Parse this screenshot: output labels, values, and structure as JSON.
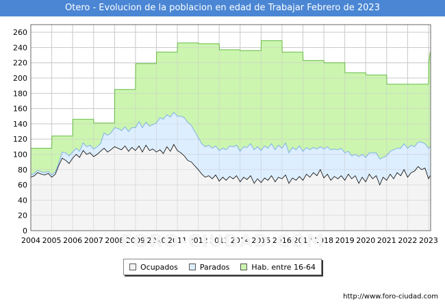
{
  "title": "Otero - Evolucion de la poblacion en edad de Trabajar Febrero de 2023",
  "source": "http://www.foro-ciudad.com",
  "watermark": "FORO-CIUDAD.COM",
  "colors": {
    "title_bg": "#4a86d4",
    "hab": "#ccf5b0",
    "hab_line": "#66bb44",
    "parados": "#ddeeff",
    "parados_line": "#7fb2e5",
    "ocupados": "#f4f4f4",
    "ocupados_line": "#000000"
  },
  "chart_data": {
    "type": "area",
    "title": "Otero - Evolucion de la poblacion en edad de Trabajar Febrero de 2023",
    "xlabel": "",
    "ylabel": "",
    "xlim": [
      2004,
      2023.1
    ],
    "ylim": [
      0,
      270
    ],
    "x_ticks": [
      "2004",
      "2005",
      "2006",
      "2007",
      "2008",
      "2009",
      "2010",
      "2011",
      "2012",
      "2013",
      "2014",
      "2015",
      "2016",
      "2017",
      "2018",
      "2019",
      "2020",
      "2021",
      "2022",
      "2023"
    ],
    "y_ticks": [
      0,
      20,
      40,
      60,
      80,
      100,
      120,
      140,
      160,
      180,
      200,
      220,
      240,
      260
    ],
    "grid": true,
    "legend_position": "bottom",
    "series": [
      {
        "name": "Ocupados",
        "x": [
          2004,
          2004.17,
          2004.33,
          2004.5,
          2004.67,
          2004.83,
          2005,
          2005.17,
          2005.33,
          2005.5,
          2005.67,
          2005.83,
          2006,
          2006.17,
          2006.33,
          2006.5,
          2006.67,
          2006.83,
          2007,
          2007.17,
          2007.33,
          2007.5,
          2007.67,
          2007.83,
          2008,
          2008.17,
          2008.33,
          2008.5,
          2008.67,
          2008.83,
          2009,
          2009.17,
          2009.33,
          2009.5,
          2009.67,
          2009.83,
          2010,
          2010.17,
          2010.33,
          2010.5,
          2010.67,
          2010.83,
          2011,
          2011.17,
          2011.33,
          2011.5,
          2011.67,
          2011.83,
          2012,
          2012.17,
          2012.33,
          2012.5,
          2012.67,
          2012.83,
          2013,
          2013.17,
          2013.33,
          2013.5,
          2013.67,
          2013.83,
          2014,
          2014.17,
          2014.33,
          2014.5,
          2014.67,
          2014.83,
          2015,
          2015.17,
          2015.33,
          2015.5,
          2015.67,
          2015.83,
          2016,
          2016.17,
          2016.33,
          2016.5,
          2016.67,
          2016.83,
          2017,
          2017.17,
          2017.33,
          2017.5,
          2017.67,
          2017.83,
          2018,
          2018.17,
          2018.33,
          2018.5,
          2018.67,
          2018.83,
          2019,
          2019.17,
          2019.33,
          2019.5,
          2019.67,
          2019.83,
          2020,
          2020.17,
          2020.33,
          2020.5,
          2020.67,
          2020.83,
          2021,
          2021.17,
          2021.33,
          2021.5,
          2021.67,
          2021.83,
          2022,
          2022.17,
          2022.33,
          2022.5,
          2022.67,
          2022.83,
          2023,
          2023.08
        ],
        "values": [
          70,
          72,
          76,
          74,
          73,
          75,
          70,
          74,
          85,
          95,
          92,
          88,
          95,
          100,
          96,
          105,
          100,
          102,
          97,
          100,
          104,
          108,
          103,
          106,
          110,
          108,
          106,
          111,
          104,
          109,
          105,
          111,
          103,
          112,
          105,
          107,
          103,
          106,
          101,
          110,
          104,
          113,
          105,
          102,
          98,
          92,
          90,
          85,
          80,
          74,
          70,
          72,
          68,
          73,
          65,
          70,
          66,
          71,
          68,
          72,
          64,
          70,
          67,
          72,
          62,
          68,
          63,
          69,
          66,
          72,
          64,
          70,
          68,
          73,
          62,
          69,
          66,
          71,
          66,
          74,
          70,
          76,
          72,
          80,
          69,
          74,
          66,
          71,
          68,
          72,
          66,
          74,
          68,
          72,
          62,
          70,
          64,
          74,
          68,
          72,
          60,
          70,
          66,
          74,
          68,
          76,
          72,
          80,
          70,
          76,
          78,
          84,
          80,
          82,
          68,
          72
        ]
      },
      {
        "name": "Parados",
        "x": [
          2004,
          2004.17,
          2004.33,
          2004.5,
          2004.67,
          2004.83,
          2005,
          2005.17,
          2005.33,
          2005.5,
          2005.67,
          2005.83,
          2006,
          2006.17,
          2006.33,
          2006.5,
          2006.67,
          2006.83,
          2007,
          2007.17,
          2007.33,
          2007.5,
          2007.67,
          2007.83,
          2008,
          2008.17,
          2008.33,
          2008.5,
          2008.67,
          2008.83,
          2009,
          2009.17,
          2009.33,
          2009.5,
          2009.67,
          2009.83,
          2010,
          2010.17,
          2010.33,
          2010.5,
          2010.67,
          2010.83,
          2011,
          2011.17,
          2011.33,
          2011.5,
          2011.67,
          2011.83,
          2012,
          2012.17,
          2012.33,
          2012.5,
          2012.67,
          2012.83,
          2013,
          2013.17,
          2013.33,
          2013.5,
          2013.67,
          2013.83,
          2014,
          2014.17,
          2014.33,
          2014.5,
          2014.67,
          2014.83,
          2015,
          2015.17,
          2015.33,
          2015.5,
          2015.67,
          2015.83,
          2016,
          2016.17,
          2016.33,
          2016.5,
          2016.67,
          2016.83,
          2017,
          2017.17,
          2017.33,
          2017.5,
          2017.67,
          2017.83,
          2018,
          2018.17,
          2018.33,
          2018.5,
          2018.67,
          2018.83,
          2019,
          2019.17,
          2019.33,
          2019.5,
          2019.67,
          2019.83,
          2020,
          2020.17,
          2020.33,
          2020.5,
          2020.67,
          2020.83,
          2021,
          2021.17,
          2021.33,
          2021.5,
          2021.67,
          2021.83,
          2022,
          2022.17,
          2022.33,
          2022.5,
          2022.67,
          2022.83,
          2023,
          2023.08
        ],
        "values": [
          3,
          3,
          3,
          3,
          3,
          3,
          3,
          3,
          3,
          8,
          10,
          10,
          8,
          8,
          8,
          10,
          10,
          10,
          10,
          10,
          10,
          20,
          22,
          22,
          25,
          26,
          25,
          25,
          26,
          26,
          30,
          32,
          32,
          30,
          32,
          32,
          38,
          42,
          45,
          42,
          45,
          42,
          45,
          48,
          50,
          50,
          48,
          45,
          42,
          40,
          40,
          40,
          40,
          38,
          40,
          38,
          40,
          40,
          42,
          40,
          40,
          40,
          42,
          42,
          44,
          42,
          42,
          42,
          42,
          42,
          42,
          42,
          40,
          42,
          40,
          40,
          40,
          40,
          38,
          35,
          36,
          33,
          35,
          30,
          38,
          36,
          40,
          36,
          38,
          36,
          36,
          30,
          30,
          28,
          35,
          30,
          32,
          28,
          34,
          30,
          34,
          26,
          32,
          30,
          38,
          32,
          36,
          34,
          38,
          36,
          32,
          32,
          36,
          32,
          40,
          38
        ]
      },
      {
        "name": "Hab. entre 16-64",
        "x": [
          2004,
          2005,
          2005.01,
          2006,
          2006.01,
          2007,
          2007.01,
          2008,
          2008.01,
          2009,
          2009.01,
          2010,
          2010.01,
          2011,
          2011.01,
          2012,
          2012.01,
          2013,
          2013.01,
          2014,
          2014.01,
          2015,
          2015.01,
          2016,
          2016.01,
          2017,
          2017.01,
          2018,
          2018.01,
          2019,
          2019.01,
          2020,
          2020.01,
          2021,
          2021.01,
          2022,
          2022.01,
          2023,
          2023.01,
          2023.08
        ],
        "values": [
          108,
          108,
          124,
          124,
          146,
          146,
          141,
          141,
          185,
          185,
          219,
          219,
          234,
          234,
          246,
          246,
          245,
          245,
          237,
          237,
          236,
          236,
          249,
          249,
          234,
          234,
          223,
          223,
          220,
          220,
          207,
          207,
          204,
          204,
          192,
          192,
          192,
          192,
          220,
          234
        ]
      }
    ]
  },
  "legend": {
    "ocupados": "Ocupados",
    "parados": "Parados",
    "hab": "Hab. entre 16-64"
  }
}
